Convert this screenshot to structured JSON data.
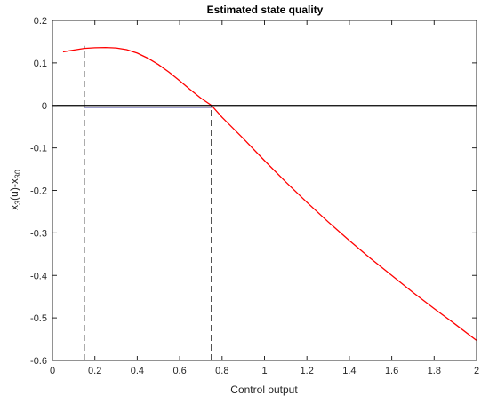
{
  "chart_data": {
    "type": "line",
    "title": "Estimated state quality",
    "xlabel": "Control output",
    "ylabel": {
      "parts": [
        {
          "text": "x",
          "sub": false
        },
        {
          "text": "3",
          "sub": true
        },
        {
          "text": "(u)-x",
          "sub": false
        },
        {
          "text": "30",
          "sub": true
        }
      ]
    },
    "xlim": [
      0,
      2
    ],
    "ylim": [
      -0.6,
      0.2
    ],
    "xticks": [
      0,
      0.2,
      0.4,
      0.6,
      0.8,
      1,
      1.2,
      1.4,
      1.6,
      1.8,
      2
    ],
    "xtick_labels": [
      "0",
      "0.2",
      "0.4",
      "0.6",
      "0.8",
      "1",
      "1.2",
      "1.4",
      "1.6",
      "1.8",
      "2"
    ],
    "yticks": [
      0.2,
      0.1,
      0,
      -0.1,
      -0.2,
      -0.3,
      -0.4,
      -0.5,
      -0.6
    ],
    "ytick_labels": [
      "0.2",
      "0.1",
      "0",
      "-0.1",
      "-0.2",
      "-0.3",
      "-0.4",
      "-0.5",
      "-0.6"
    ],
    "grid": false,
    "series": [
      {
        "color": "#ff0000",
        "style": "solid",
        "x": [
          0.05,
          0.1,
          0.15,
          0.2,
          0.25,
          0.3,
          0.35,
          0.4,
          0.45,
          0.5,
          0.55,
          0.6,
          0.65,
          0.7,
          0.75,
          0.8,
          0.9,
          1.0,
          1.1,
          1.2,
          1.3,
          1.4,
          1.5,
          1.6,
          1.7,
          1.8,
          1.9,
          2.0
        ],
        "y": [
          0.126,
          0.13,
          0.134,
          0.1355,
          0.136,
          0.135,
          0.131,
          0.123,
          0.111,
          0.096,
          0.078,
          0.058,
          0.037,
          0.017,
          0.0,
          -0.028,
          -0.078,
          -0.13,
          -0.18,
          -0.228,
          -0.274,
          -0.318,
          -0.36,
          -0.4,
          -0.44,
          -0.478,
          -0.515,
          -0.553
        ]
      },
      {
        "color": "#000000",
        "style": "solid",
        "x": [
          0,
          2
        ],
        "y": [
          0,
          0
        ]
      },
      {
        "color": "#000080",
        "style": "solid",
        "x": [
          0.15,
          0.75
        ],
        "y": [
          -0.004,
          -0.004
        ]
      }
    ],
    "vlines": [
      {
        "x": 0.15,
        "y_from": -0.6,
        "y_to": 0.14,
        "color": "#000000",
        "style": "dashed"
      },
      {
        "x": 0.75,
        "y_from": -0.6,
        "y_to": 0.0,
        "color": "#000000",
        "style": "dashed"
      }
    ]
  }
}
